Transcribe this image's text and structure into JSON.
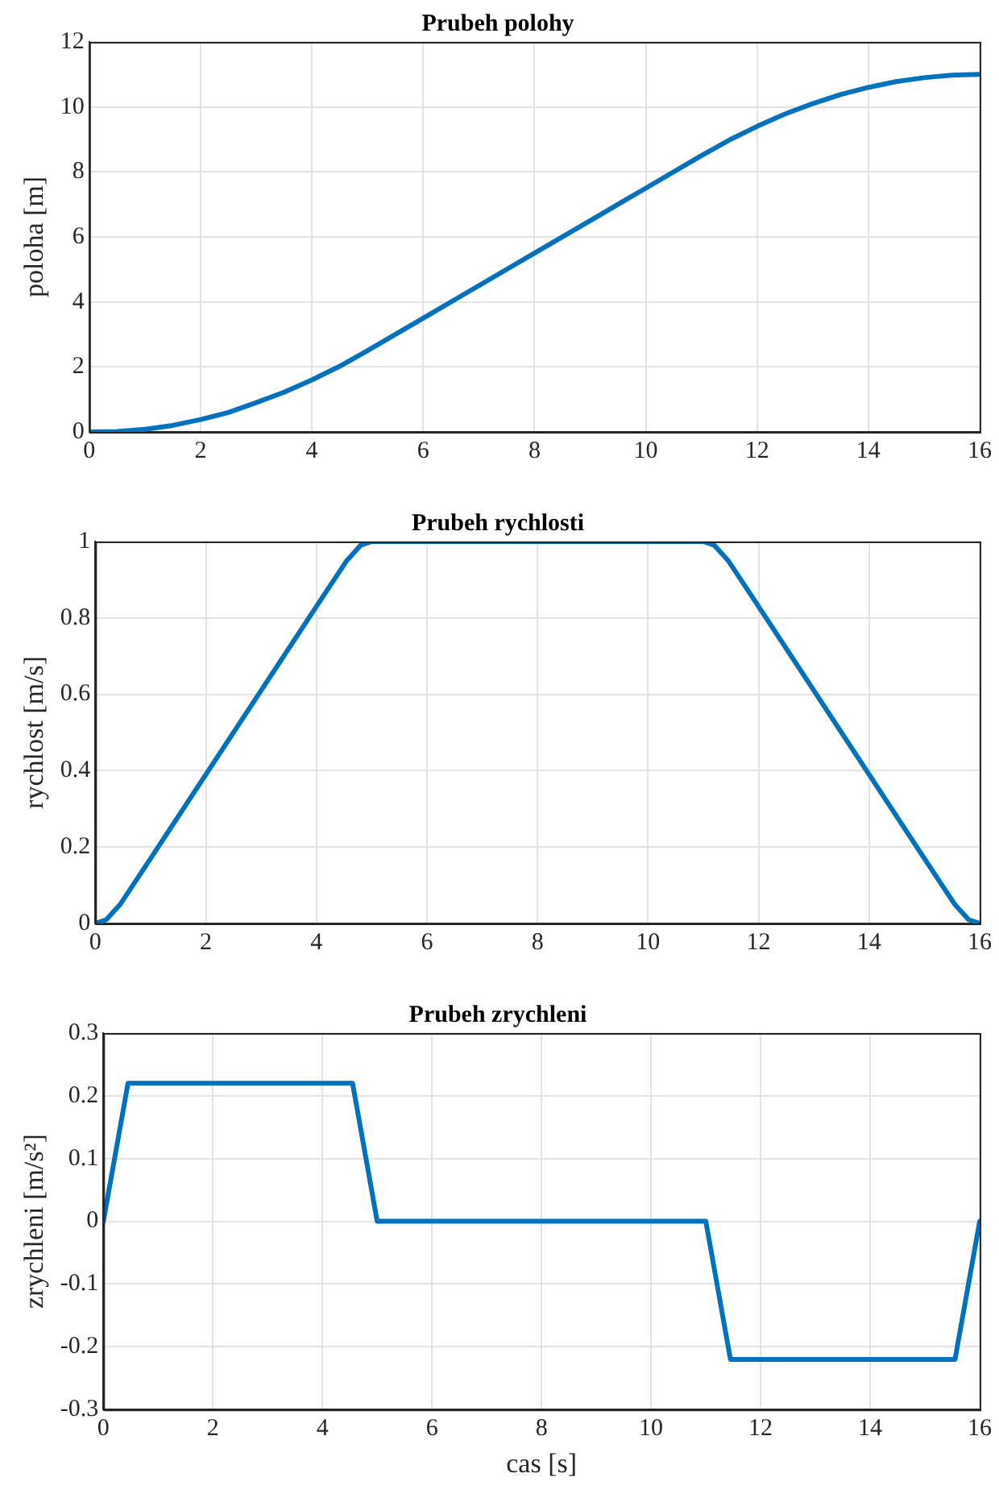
{
  "chart_data": [
    {
      "type": "line",
      "title": "Prubeh polohy",
      "ylabel": "poloha [m]",
      "xlim": [
        0,
        16
      ],
      "xticks": [
        0,
        2,
        4,
        6,
        8,
        10,
        12,
        14,
        16
      ],
      "ylim": [
        0,
        12
      ],
      "yticks": [
        0,
        2,
        4,
        6,
        8,
        10,
        12
      ],
      "grid": true,
      "line_style": "solid",
      "marker": "none",
      "x": [
        0,
        0.5,
        1,
        1.5,
        2,
        2.5,
        3,
        3.5,
        4,
        4.5,
        5,
        6,
        7,
        8,
        9,
        10,
        11,
        11.5,
        12,
        12.5,
        13,
        13.5,
        14,
        14.5,
        15,
        15.5,
        16
      ],
      "series": [
        {
          "color": "#0072bd",
          "values": [
            0,
            0.01,
            0.08,
            0.2,
            0.38,
            0.6,
            0.9,
            1.22,
            1.6,
            2.02,
            2.5,
            3.5,
            4.5,
            5.5,
            6.5,
            7.5,
            8.5,
            8.98,
            9.4,
            9.78,
            10.1,
            10.38,
            10.6,
            10.78,
            10.9,
            10.98,
            11
          ]
        }
      ]
    },
    {
      "type": "line",
      "title": "Prubeh rychlosti",
      "ylabel": "rychlost [m/s]",
      "xlim": [
        0,
        16
      ],
      "xticks": [
        0,
        2,
        4,
        6,
        8,
        10,
        12,
        14,
        16
      ],
      "ylim": [
        0,
        1
      ],
      "yticks": [
        0,
        0.2,
        0.4,
        0.6,
        0.8,
        1
      ],
      "grid": true,
      "line_style": "solid",
      "marker": "none",
      "x": [
        0,
        0.2,
        0.45,
        1,
        2,
        3,
        4,
        4.55,
        4.8,
        5,
        11,
        11.2,
        11.45,
        12,
        13,
        14,
        15,
        15.55,
        15.8,
        16
      ],
      "series": [
        {
          "color": "#0072bd",
          "values": [
            0,
            0.01,
            0.05,
            0.17,
            0.39,
            0.61,
            0.83,
            0.95,
            0.99,
            1,
            1,
            0.99,
            0.95,
            0.83,
            0.61,
            0.39,
            0.17,
            0.05,
            0.01,
            0
          ]
        }
      ]
    },
    {
      "type": "line",
      "title": "Prubeh zrychleni",
      "xlabel": "cas [s]",
      "ylabel": "zrychleni [m/s²]",
      "xlim": [
        0,
        16
      ],
      "xticks": [
        0,
        2,
        4,
        6,
        8,
        10,
        12,
        14,
        16
      ],
      "ylim": [
        -0.3,
        0.3
      ],
      "yticks": [
        -0.3,
        -0.2,
        -0.1,
        0,
        0.1,
        0.2,
        0.3
      ],
      "grid": true,
      "line_style": "solid",
      "marker": "none",
      "x": [
        0,
        0.45,
        4.55,
        5,
        11,
        11.45,
        15.55,
        16
      ],
      "series": [
        {
          "color": "#0072bd",
          "values": [
            0,
            0.22,
            0.22,
            0,
            0,
            -0.22,
            -0.22,
            0
          ]
        }
      ]
    }
  ]
}
